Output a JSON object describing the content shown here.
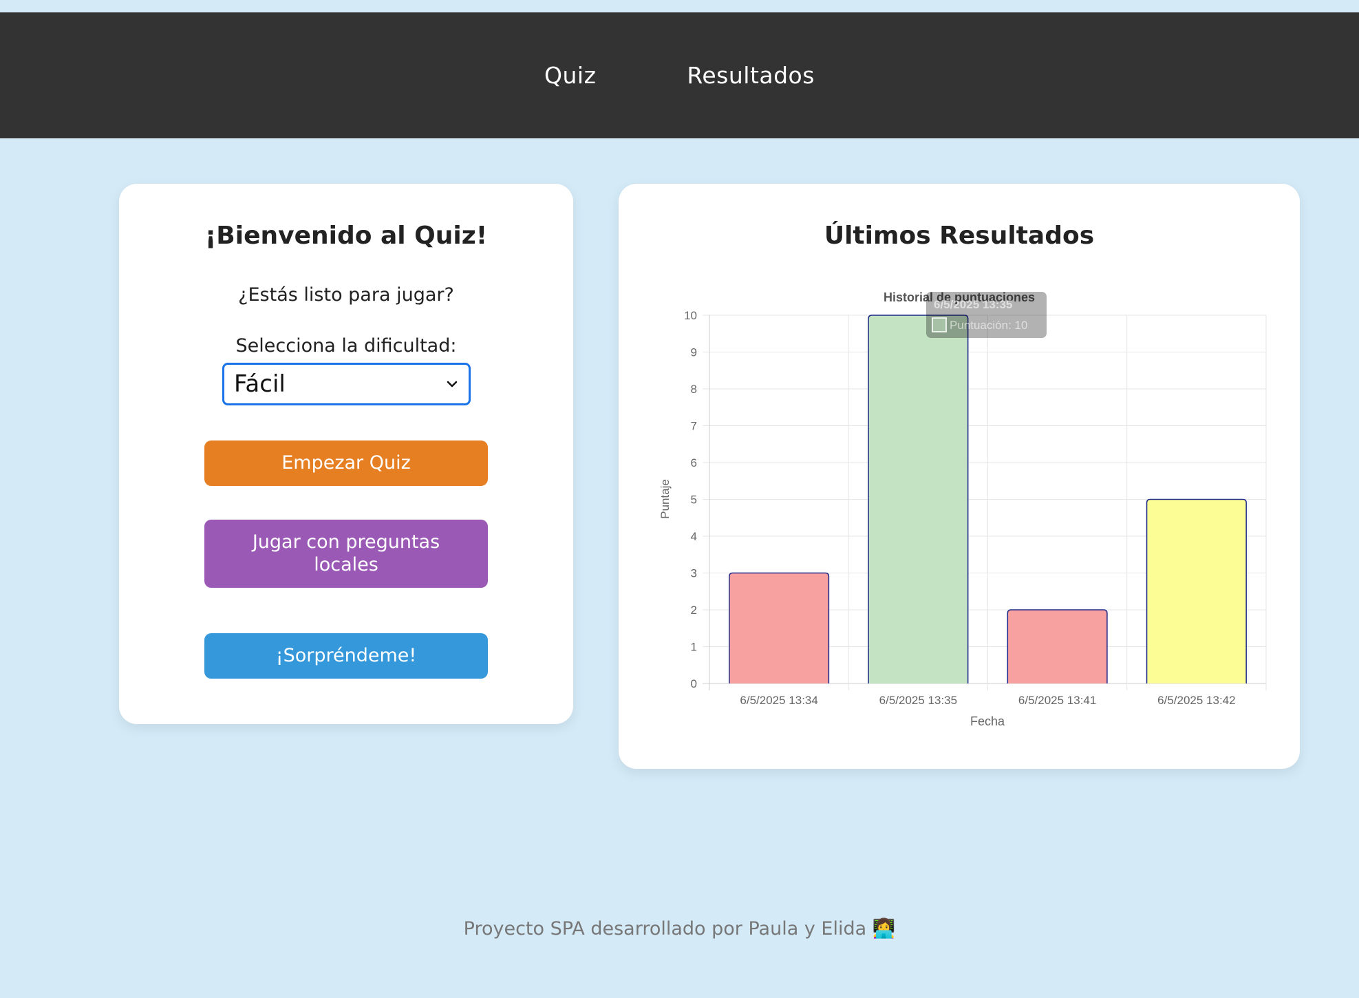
{
  "nav": {
    "items": [
      {
        "label": "Quiz"
      },
      {
        "label": "Resultados"
      }
    ]
  },
  "welcome": {
    "title": "¡Bienvenido al Quiz!",
    "subtitle": "¿Estás listo para jugar?",
    "difficulty_label": "Selecciona la dificultad:",
    "difficulty_selected": "Fácil",
    "buttons": {
      "start": "Empezar Quiz",
      "local": "Jugar con preguntas locales",
      "surprise": "¡Sorpréndeme!"
    },
    "colors": {
      "start": "#e67e22",
      "local": "#9b59b6",
      "surprise": "#3498db",
      "select_border": "#1a73e8"
    }
  },
  "results": {
    "title": "Últimos Resultados"
  },
  "chart_data": {
    "type": "bar",
    "title": "Historial de puntuaciones",
    "xlabel": "Fecha",
    "ylabel": "Puntaje",
    "categories": [
      "6/5/2025 13:34",
      "6/5/2025 13:35",
      "6/5/2025 13:41",
      "6/5/2025 13:42"
    ],
    "series": [
      {
        "name": "Puntuación",
        "values": [
          3,
          10,
          2,
          5
        ]
      }
    ],
    "bar_colors": [
      "#f8a1a1",
      "#c3e3c3",
      "#f8a1a1",
      "#fdfd96"
    ],
    "bar_border": "#1f2a8a",
    "ylim": [
      0,
      10
    ],
    "yticks": [
      0,
      1,
      2,
      3,
      4,
      5,
      6,
      7,
      8,
      9,
      10
    ],
    "grid": true,
    "tooltip": {
      "title": "6/5/2025 13:35",
      "label": "Puntuación: 10"
    }
  },
  "footer": {
    "text": "Proyecto SPA desarrollado por Paula y Elida 👩‍💻"
  }
}
